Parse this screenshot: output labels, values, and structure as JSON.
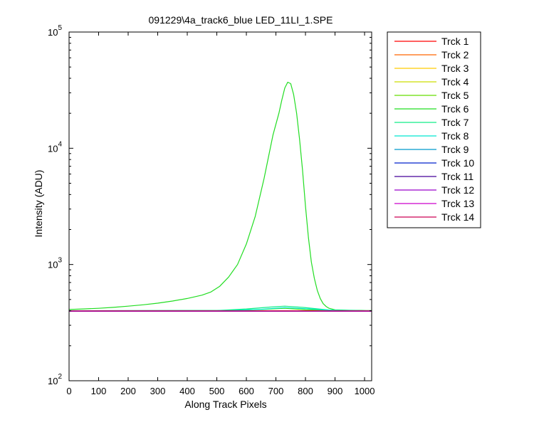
{
  "chart_data": {
    "type": "line",
    "title": "091229\\4a_track6_blue LED_11LI_1.SPE",
    "xlabel": "Along Track Pixels",
    "ylabel": "Intensity (ADU)",
    "xlim": [
      0,
      1024
    ],
    "ylim": [
      100,
      100000
    ],
    "yscale": "log",
    "grid": false,
    "legend_position": "outside-right",
    "x_ticks": [
      0,
      100,
      200,
      300,
      400,
      500,
      600,
      700,
      800,
      900,
      1000
    ],
    "y_ticks": [
      {
        "value": 100,
        "base": "10",
        "exp": "2"
      },
      {
        "value": 1000,
        "base": "10",
        "exp": "3"
      },
      {
        "value": 10000,
        "base": "10",
        "exp": "4"
      },
      {
        "value": 100000,
        "base": "10",
        "exp": "5"
      }
    ],
    "series": [
      {
        "name": "Trck 1",
        "color": "#ff0000",
        "x": [
          0,
          1024
        ],
        "y": [
          400,
          400
        ]
      },
      {
        "name": "Trck 2",
        "color": "#ff6600",
        "x": [
          0,
          1024
        ],
        "y": [
          400,
          400
        ]
      },
      {
        "name": "Trck 3",
        "color": "#ffcc00",
        "x": [
          0,
          1024
        ],
        "y": [
          400,
          400
        ]
      },
      {
        "name": "Trck 4",
        "color": "#ccdd00",
        "x": [
          0,
          1024
        ],
        "y": [
          400,
          400
        ]
      },
      {
        "name": "Trck 5",
        "color": "#66dd00",
        "x": [
          0,
          500,
          650,
          730,
          800,
          1024
        ],
        "y": [
          400,
          402,
          410,
          420,
          408,
          400
        ]
      },
      {
        "name": "Trck 6",
        "color": "#22dd22",
        "x": [
          0,
          50,
          100,
          150,
          200,
          250,
          300,
          350,
          400,
          450,
          480,
          510,
          540,
          570,
          600,
          630,
          660,
          690,
          710,
          720,
          730,
          740,
          750,
          760,
          770,
          780,
          790,
          800,
          810,
          820,
          830,
          840,
          850,
          860,
          870,
          880,
          900,
          950,
          1000,
          1024
        ],
        "y": [
          410,
          415,
          420,
          428,
          438,
          450,
          465,
          485,
          510,
          545,
          580,
          650,
          780,
          1000,
          1500,
          2600,
          5500,
          13000,
          20000,
          26000,
          33000,
          37000,
          36000,
          29000,
          20000,
          12000,
          6500,
          3200,
          1700,
          1050,
          760,
          600,
          510,
          460,
          435,
          420,
          408,
          404,
          402,
          402
        ]
      },
      {
        "name": "Trck 7",
        "color": "#11ee88",
        "x": [
          0,
          500,
          600,
          680,
          730,
          790,
          880,
          1024
        ],
        "y": [
          400,
          402,
          415,
          430,
          438,
          428,
          406,
          400
        ]
      },
      {
        "name": "Trck 8",
        "color": "#00e8d0",
        "x": [
          0,
          550,
          650,
          730,
          800,
          900,
          1024
        ],
        "y": [
          400,
          402,
          412,
          425,
          416,
          403,
          400
        ]
      },
      {
        "name": "Trck 9",
        "color": "#0099cc",
        "x": [
          0,
          1024
        ],
        "y": [
          398,
          398
        ]
      },
      {
        "name": "Trck 10",
        "color": "#0022cc",
        "x": [
          0,
          1024
        ],
        "y": [
          397,
          397
        ]
      },
      {
        "name": "Trck 11",
        "color": "#440099",
        "x": [
          0,
          1024
        ],
        "y": [
          396,
          396
        ]
      },
      {
        "name": "Trck 12",
        "color": "#9900cc",
        "x": [
          0,
          1024
        ],
        "y": [
          397,
          397
        ]
      },
      {
        "name": "Trck 13",
        "color": "#cc00cc",
        "x": [
          0,
          1024
        ],
        "y": [
          398,
          398
        ]
      },
      {
        "name": "Trck 14",
        "color": "#cc0055",
        "x": [
          0,
          1024
        ],
        "y": [
          399,
          399
        ]
      }
    ]
  }
}
